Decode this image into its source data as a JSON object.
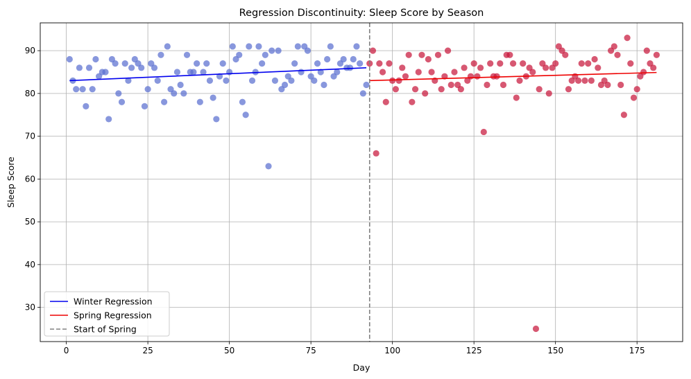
{
  "chart_data": {
    "type": "scatter",
    "title": "Regression Discontinuity: Sleep Score by Season",
    "xlabel": "Day",
    "ylabel": "Sleep Score",
    "xlim": [
      -8,
      189
    ],
    "ylim": [
      22,
      96.5
    ],
    "xticks": [
      0,
      25,
      50,
      75,
      100,
      125,
      150,
      175
    ],
    "yticks": [
      30,
      40,
      50,
      60,
      70,
      80,
      90
    ],
    "grid": true,
    "legend_position": "lower-left",
    "colors": {
      "winter_points": "#5a6fd0",
      "spring_points": "#c8183c",
      "winter_line": "#0000ee",
      "spring_line": "#ee0000",
      "cutoff": "#808080"
    },
    "series": [
      {
        "kind": "points",
        "color_key": "winter_points",
        "x": [
          1,
          2,
          3,
          4,
          5,
          6,
          7,
          8,
          9,
          10,
          11,
          12,
          13,
          14,
          15,
          16,
          17,
          18,
          19,
          20,
          21,
          22,
          23,
          24,
          25,
          26,
          27,
          28,
          29,
          30,
          31,
          32,
          33,
          34,
          35,
          36,
          37,
          38,
          39,
          40,
          41,
          42,
          43,
          44,
          45,
          46,
          47,
          48,
          49,
          50,
          51,
          52,
          53,
          54,
          55,
          56,
          57,
          58,
          59,
          60,
          61,
          62,
          63,
          64,
          65,
          66,
          67,
          68,
          69,
          70,
          71,
          72,
          73,
          74,
          75,
          76,
          77,
          78,
          79,
          80,
          81,
          82,
          83,
          84,
          85,
          86,
          87,
          88,
          89,
          90,
          91,
          92
        ],
        "y": [
          88,
          83,
          81,
          86,
          81,
          77,
          86,
          81,
          88,
          84,
          85,
          85,
          74,
          88,
          87,
          80,
          78,
          87,
          83,
          86,
          88,
          87,
          86,
          77,
          81,
          87,
          86,
          83,
          89,
          78,
          91,
          81,
          80,
          85,
          82,
          80,
          89,
          85,
          85,
          87,
          78,
          85,
          87,
          83,
          79,
          74,
          84,
          87,
          83,
          85,
          91,
          88,
          89,
          78,
          75,
          91,
          83,
          85,
          91,
          87,
          89,
          63,
          90,
          83,
          90,
          81,
          82,
          84,
          83,
          87,
          91,
          85,
          91,
          90,
          84,
          83,
          87,
          85,
          82,
          88,
          91,
          84,
          85,
          87,
          88,
          86,
          86,
          88,
          91,
          87,
          80,
          82
        ]
      },
      {
        "kind": "points",
        "color_key": "spring_points",
        "x": [
          93,
          94,
          95,
          96,
          97,
          98,
          99,
          100,
          101,
          102,
          103,
          104,
          105,
          106,
          107,
          108,
          109,
          110,
          111,
          112,
          113,
          114,
          115,
          116,
          117,
          118,
          119,
          120,
          121,
          122,
          123,
          124,
          125,
          126,
          127,
          128,
          129,
          130,
          131,
          132,
          133,
          134,
          135,
          136,
          137,
          138,
          139,
          140,
          141,
          142,
          143,
          144,
          145,
          146,
          147,
          148,
          149,
          150,
          151,
          152,
          153,
          154,
          155,
          156,
          157,
          158,
          159,
          160,
          161,
          162,
          163,
          164,
          165,
          166,
          167,
          168,
          169,
          170,
          171,
          172,
          173,
          174,
          175,
          176,
          177,
          178,
          179,
          180,
          181
        ],
        "y": [
          87,
          90,
          66,
          87,
          85,
          78,
          87,
          83,
          81,
          83,
          86,
          84,
          89,
          78,
          81,
          85,
          89,
          80,
          88,
          85,
          83,
          89,
          81,
          84,
          90,
          82,
          85,
          82,
          81,
          86,
          83,
          84,
          87,
          84,
          86,
          71,
          82,
          87,
          84,
          84,
          87,
          82,
          89,
          89,
          87,
          79,
          83,
          87,
          84,
          86,
          85,
          25,
          81,
          87,
          86,
          80,
          86,
          87,
          91,
          90,
          89,
          81,
          83,
          84,
          83,
          87,
          83,
          87,
          83,
          88,
          86,
          82,
          83,
          82,
          90,
          91,
          89,
          82,
          75,
          93,
          87,
          79,
          81,
          84,
          85,
          90,
          87,
          86,
          89
        ]
      }
    ],
    "lines": [
      {
        "name": "Winter Regression",
        "color_key": "winter_line",
        "x": [
          1,
          92
        ],
        "y": [
          83.0,
          86.0
        ]
      },
      {
        "name": "Spring Regression",
        "color_key": "spring_line",
        "x": [
          93,
          181
        ],
        "y": [
          83.0,
          84.9
        ]
      }
    ],
    "cutoff": {
      "name": "Start of Spring",
      "x": 93,
      "color_key": "cutoff"
    }
  }
}
